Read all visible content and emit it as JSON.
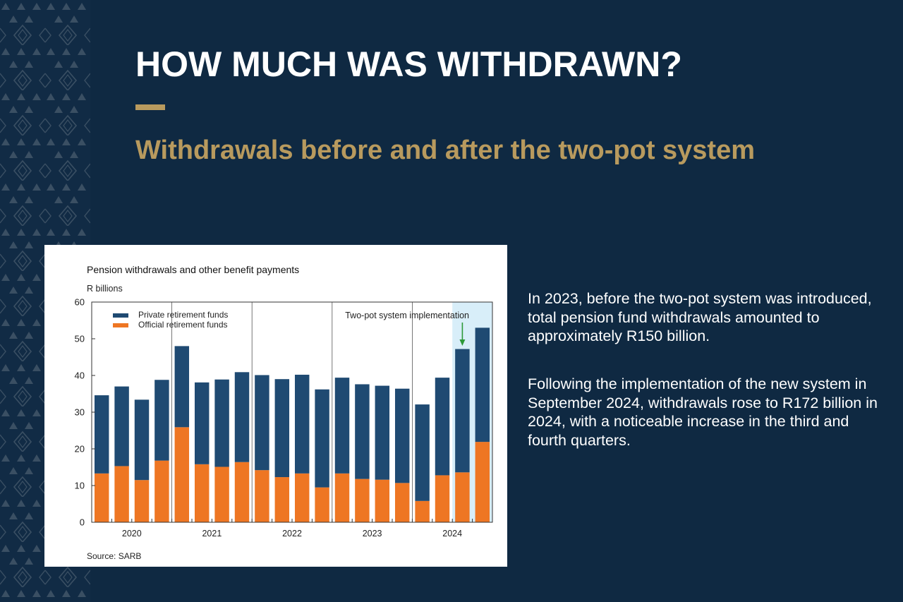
{
  "header": {
    "title": "HOW MUCH WAS WITHDRAWN?",
    "subtitle": "Withdrawals before and after the two-pot system"
  },
  "body": {
    "paragraph_1": "In 2023, before the two-pot system was introduced, total pension fund withdrawals amounted to approximately R150 billion.",
    "paragraph_2": "Following the implementation of the new system in September 2024, withdrawals rose to R172 billion in 2024, with a noticeable increase in the third and fourth quarters."
  },
  "colors": {
    "background": "#0f2942",
    "accent_gold": "#b89a5e",
    "private_funds": "#1f4a72",
    "official_funds": "#ee7623",
    "highlight": "#d8eef9",
    "arrow": "#2e9a3a"
  },
  "chart_data": {
    "type": "bar",
    "stacked": true,
    "title": "Pension withdrawals and other benefit payments",
    "ylabel": "R billions",
    "ylim": [
      0,
      60
    ],
    "yticks": [
      0,
      10,
      20,
      30,
      40,
      50,
      60
    ],
    "year_labels": [
      "2020",
      "2021",
      "2022",
      "2023",
      "2024"
    ],
    "categories": [
      "2020 Q1",
      "2020 Q2",
      "2020 Q3",
      "2020 Q4",
      "2021 Q1",
      "2021 Q2",
      "2021 Q3",
      "2021 Q4",
      "2022 Q1",
      "2022 Q2",
      "2022 Q3",
      "2022 Q4",
      "2023 Q1",
      "2023 Q2",
      "2023 Q3",
      "2023 Q4",
      "2024 Q1",
      "2024 Q2",
      "2024 Q3",
      "2024 Q4"
    ],
    "series": [
      {
        "name": "Private retirement funds",
        "values": [
          21.3,
          21.7,
          21.9,
          22.0,
          22.1,
          22.3,
          23.8,
          24.5,
          25.9,
          26.7,
          26.9,
          26.7,
          26.1,
          25.8,
          25.6,
          25.7,
          26.3,
          26.6,
          33.6,
          31.1
        ]
      },
      {
        "name": "Official retirement funds",
        "values": [
          13.3,
          15.3,
          11.5,
          16.8,
          25.9,
          15.8,
          15.1,
          16.4,
          14.2,
          12.3,
          13.3,
          9.5,
          13.3,
          11.8,
          11.6,
          10.7,
          5.8,
          12.8,
          13.6,
          21.9
        ]
      }
    ],
    "annotation": {
      "text": "Two-pot system implementation",
      "highlight_from": "2024 Q3",
      "highlight_to": "2024 Q4",
      "arrow_to": "2024 Q3"
    },
    "legend": "top-left",
    "source": "Source: SARB"
  }
}
